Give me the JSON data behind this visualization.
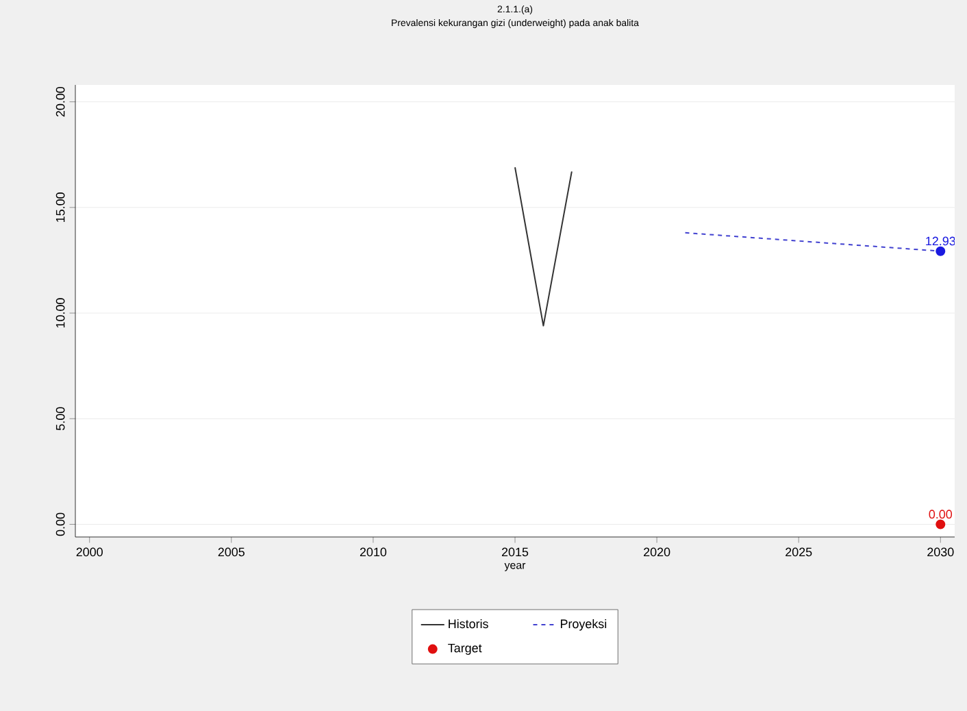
{
  "chart_data": {
    "type": "line",
    "title": "2.1.1.(a)",
    "subtitle": "Prevalensi kekurangan gizi (underweight) pada anak balita",
    "xlabel": "year",
    "xlim": [
      1999.5,
      2030.5
    ],
    "xticks": [
      2000,
      2005,
      2010,
      2015,
      2020,
      2025,
      2030
    ],
    "ylim": [
      -0.6,
      20.8
    ],
    "yticks": [
      {
        "value": 0,
        "label": "0.00"
      },
      {
        "value": 5,
        "label": "5.00"
      },
      {
        "value": 10,
        "label": "10.00"
      },
      {
        "value": 15,
        "label": "15.00"
      },
      {
        "value": 20,
        "label": "20.00"
      }
    ],
    "grid": "y",
    "legend": "bottom",
    "series": [
      {
        "name": "Historis",
        "color": "#333333",
        "x": [
          2015,
          2016,
          2017
        ],
        "values": [
          16.9,
          9.4,
          16.7
        ],
        "line_style": "solid",
        "marker": "none"
      },
      {
        "name": "Proyeksi",
        "color": "#4040d0",
        "x": [
          2021,
          2030
        ],
        "values": [
          13.8,
          12.93
        ],
        "line_style": "dashed",
        "marker": "none"
      },
      {
        "type": "scatter",
        "color": "#1a1ae0",
        "x": [
          2030
        ],
        "values": [
          12.93
        ],
        "marker": "circle",
        "value_labels": [
          "12.93"
        ]
      },
      {
        "name": "Target",
        "type": "scatter",
        "color": "#e01010",
        "x": [
          2030
        ],
        "values": [
          0
        ],
        "marker": "circle",
        "value_labels": [
          "0.00"
        ]
      }
    ]
  }
}
